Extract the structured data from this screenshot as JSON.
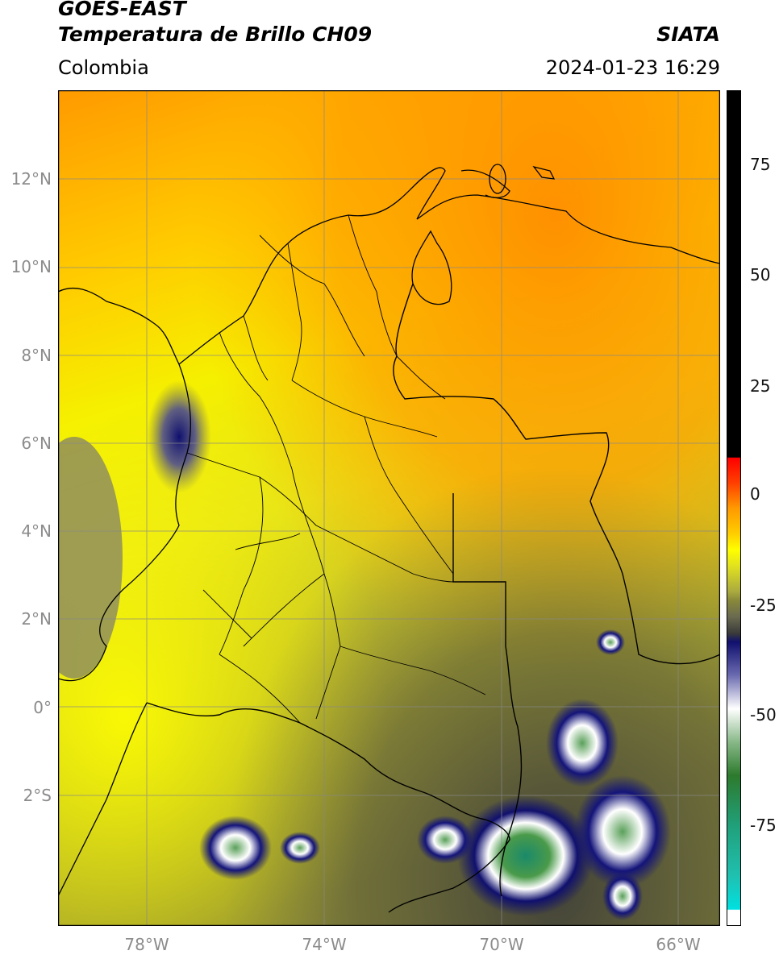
{
  "header": {
    "satellite": "GOES-EAST",
    "product": "Temperatura de Brillo CH09",
    "brand": "SIATA",
    "region": "Colombia",
    "timestamp": "2024-01-23 16:29"
  },
  "axes": {
    "lat_ticks": [
      "12°N",
      "10°N",
      "8°N",
      "6°N",
      "4°N",
      "2°N",
      "0°",
      "2°S"
    ],
    "lon_ticks": [
      "78°W",
      "74°W",
      "70°W",
      "66°W"
    ]
  },
  "colorbar": {
    "ticks": [
      "75",
      "50",
      "25",
      "0",
      "-25",
      "-50",
      "-75"
    ],
    "colors": {
      "black": "#000000",
      "red": "#ff0000",
      "orange": "#ff9900",
      "yellow": "#ffff00",
      "olive": "#8a8a3a",
      "dark": "#3a3a3a",
      "navy": "#10106e",
      "white": "#ffffff",
      "green": "#2d7a2d",
      "teal": "#20c0b0",
      "cyan": "#00e0e0"
    }
  }
}
